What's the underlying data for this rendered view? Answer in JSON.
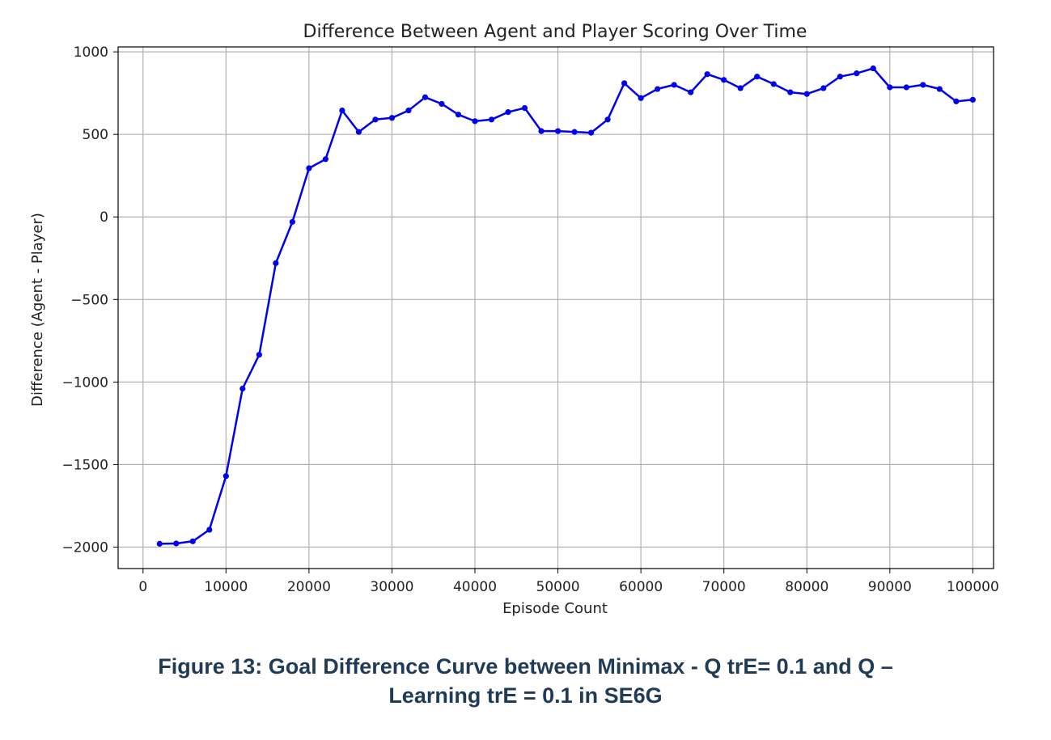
{
  "chart_data": {
    "type": "line",
    "title": "Difference Between Agent and Player Scoring Over Time",
    "xlabel": "Episode Count",
    "ylabel": "Difference (Agent - Player)",
    "xlim": [
      -3000,
      102500
    ],
    "ylim": [
      -2130,
      1030
    ],
    "xticks": [
      0,
      10000,
      20000,
      30000,
      40000,
      50000,
      60000,
      70000,
      80000,
      90000,
      100000
    ],
    "yticks": [
      1000,
      500,
      0,
      -500,
      -1000,
      -1500,
      -2000
    ],
    "ytick_labels": [
      "1000",
      "500",
      "0",
      "−500",
      "−1000",
      "−1500",
      "−2000"
    ],
    "grid": true,
    "color": "#0000ee",
    "series": [
      {
        "x": [
          2000,
          4000,
          6000,
          8000,
          10000,
          12000,
          14000,
          16000,
          18000,
          20000,
          22000,
          24000,
          26000,
          28000,
          30000,
          32000,
          34000,
          36000,
          38000,
          40000,
          42000,
          44000,
          46000,
          48000,
          50000,
          52000,
          54000,
          56000,
          58000,
          60000,
          62000,
          64000,
          66000,
          68000,
          70000,
          72000,
          74000,
          76000,
          78000,
          80000,
          82000,
          84000,
          86000,
          88000,
          90000,
          92000,
          94000,
          96000,
          98000,
          100000
        ],
        "y": [
          -1980,
          -1978,
          -1965,
          -1895,
          -1570,
          -1040,
          -835,
          -280,
          -30,
          295,
          350,
          645,
          515,
          590,
          600,
          645,
          725,
          685,
          620,
          580,
          590,
          635,
          660,
          520,
          520,
          515,
          510,
          590,
          810,
          720,
          775,
          800,
          755,
          865,
          830,
          780,
          850,
          805,
          755,
          745,
          780,
          850,
          870,
          900,
          785,
          785,
          800,
          775,
          700,
          710
        ]
      }
    ]
  },
  "caption": {
    "line1": "Figure 13: Goal Difference Curve between Minimax - Q trE= 0.1 and Q –",
    "line2": "Learning trE = 0.1 in SE6G"
  }
}
